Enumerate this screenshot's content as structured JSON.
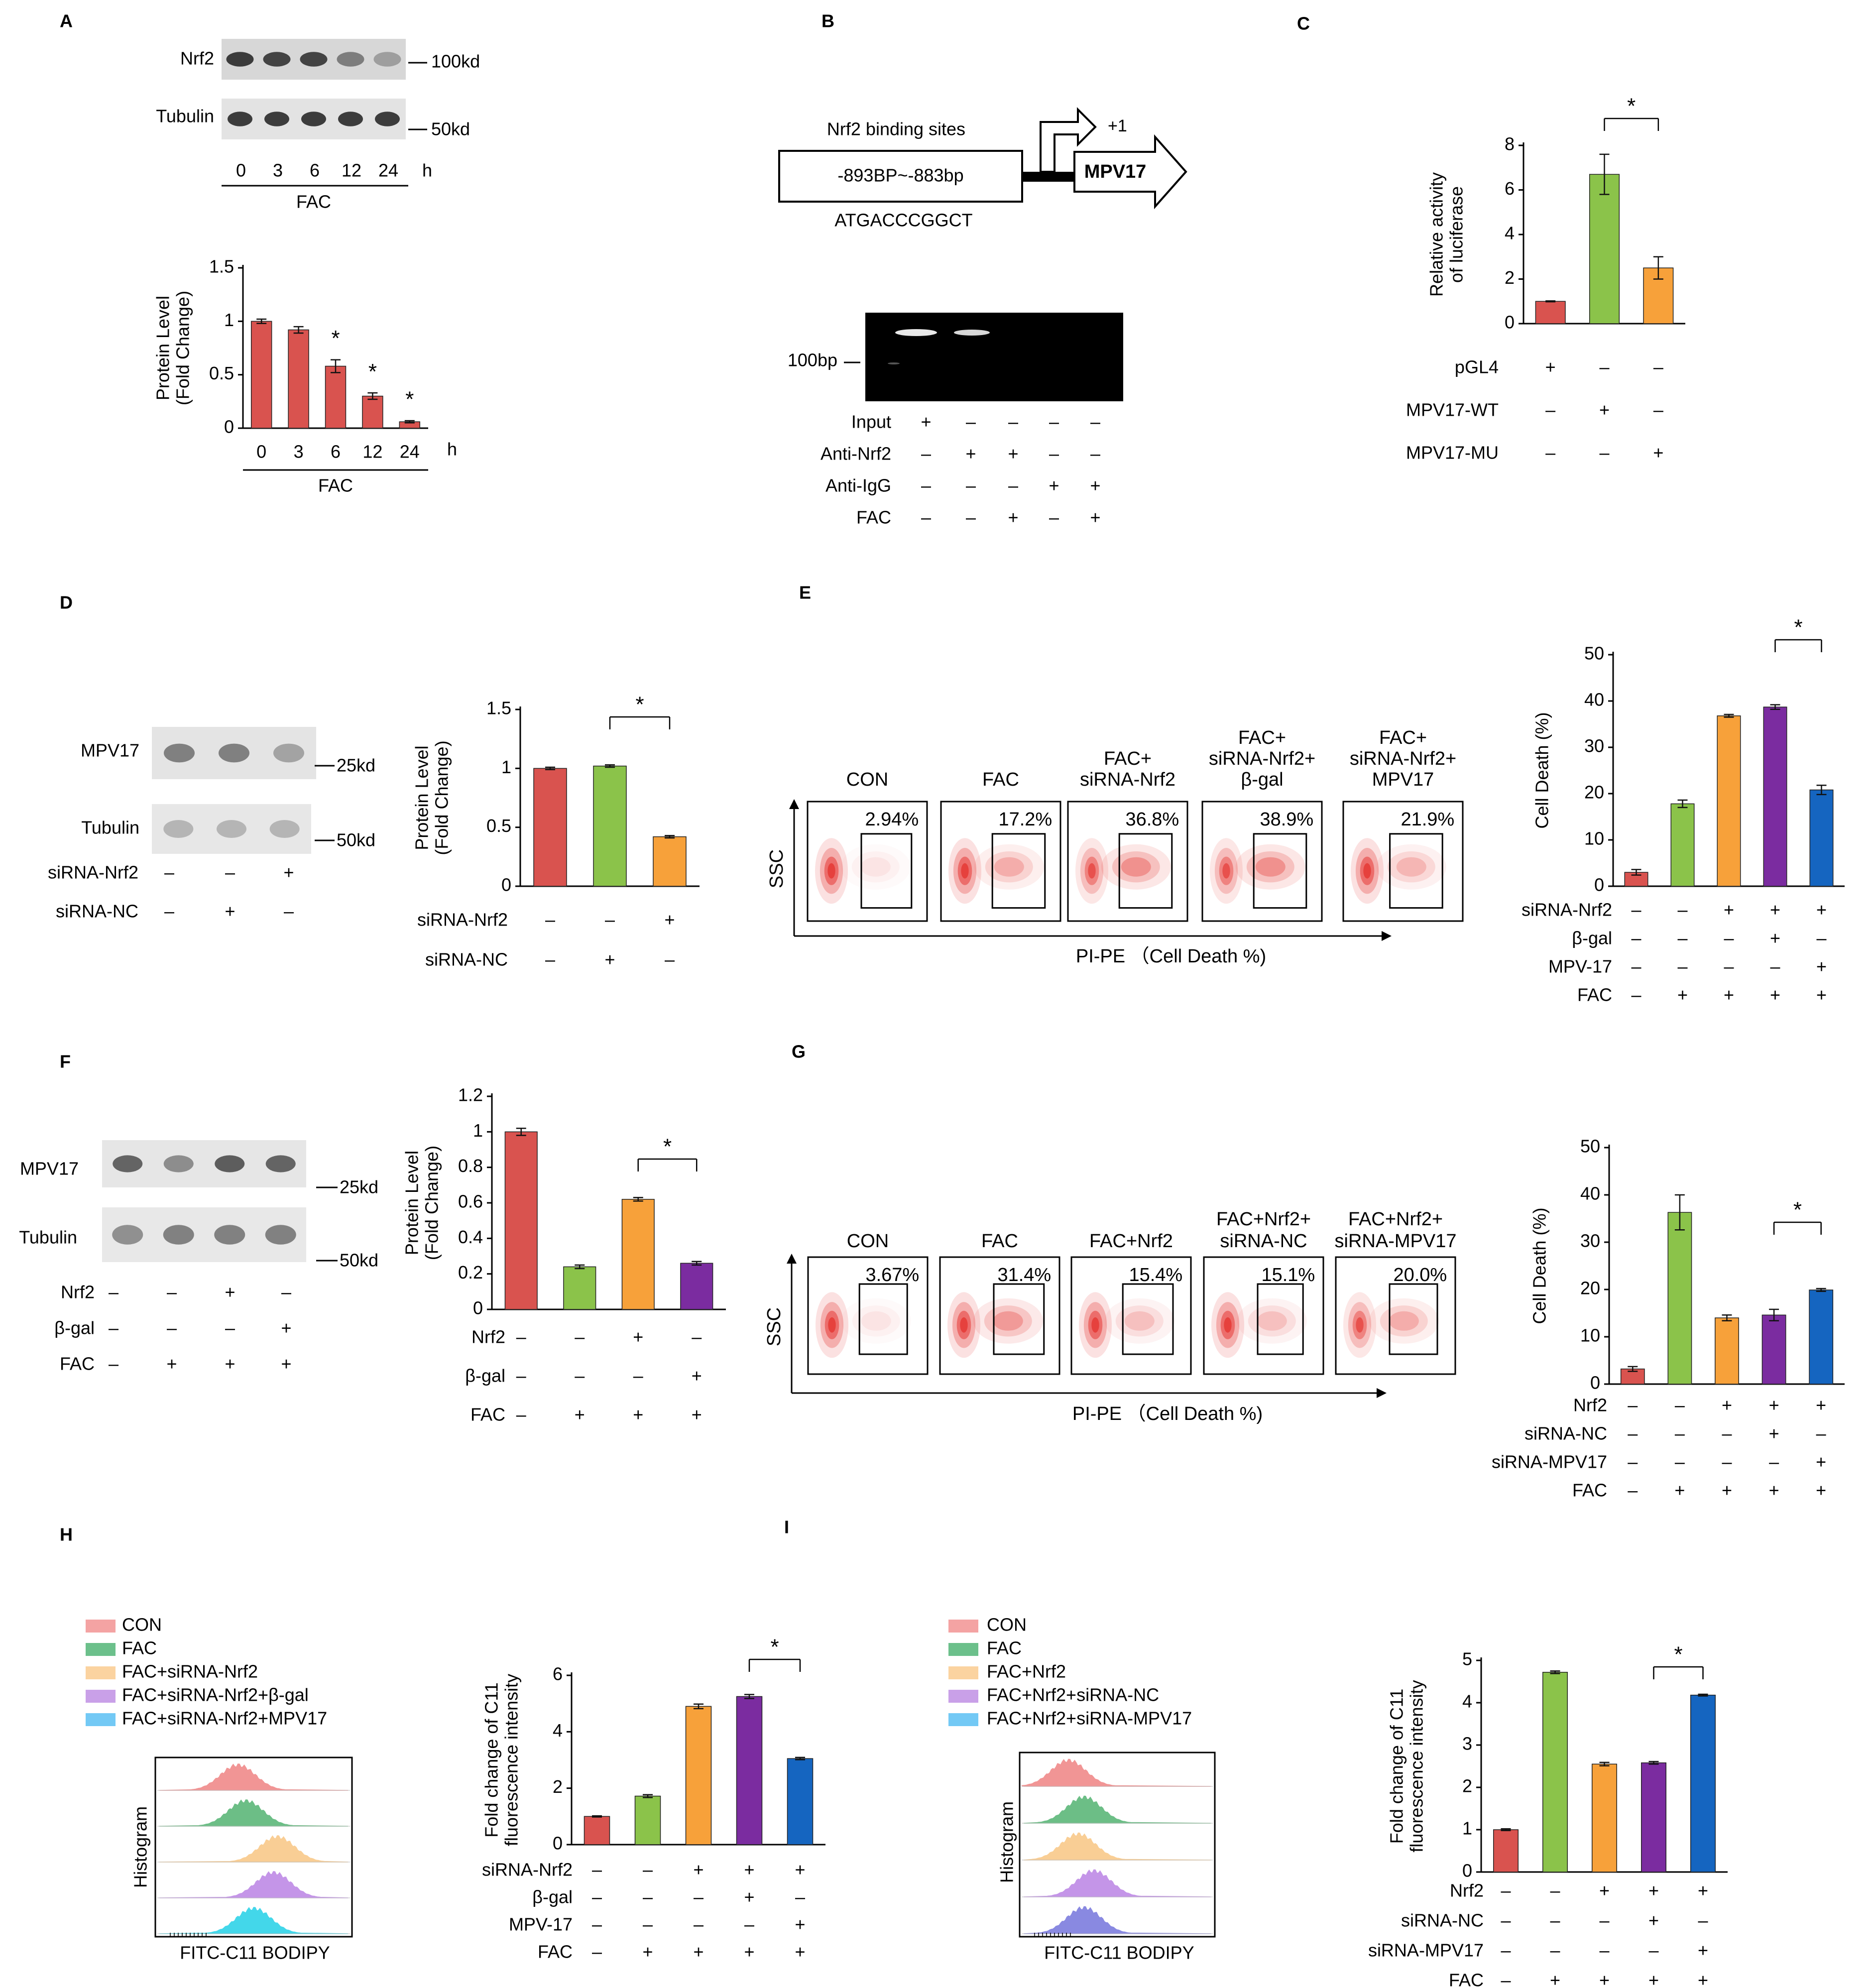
{
  "colors": {
    "red": "#D9534F",
    "green": "#8BC34A",
    "orange": "#F7A13A",
    "purple": "#7B2CA0",
    "blue": "#1565C0",
    "gel": "#e6e6e6",
    "band": "#333333"
  },
  "panels": {
    "A": {
      "label": "A",
      "blot": {
        "rows": [
          "Nrf2",
          "Tubulin"
        ],
        "sizes": [
          "100kd",
          "50kd"
        ],
        "lanes": [
          "0",
          "3",
          "6",
          "12",
          "24"
        ],
        "unit": "h",
        "treatment": "FAC"
      },
      "x_unit": "h",
      "x_group": "FAC"
    },
    "B": {
      "label": "B",
      "binding_title": "Nrf2 binding sites",
      "site_range": "-893BP~-883bp",
      "site_seq": "ATGACCCGGCT",
      "gene": "MPV17",
      "tss": "+1",
      "marker": "100bp",
      "rows": [
        {
          "name": "Input",
          "signs": [
            "+",
            "–",
            "–",
            "–",
            "–"
          ]
        },
        {
          "name": "Anti-Nrf2",
          "signs": [
            "–",
            "+",
            "+",
            "–",
            "–"
          ]
        },
        {
          "name": "Anti-IgG",
          "signs": [
            "–",
            "–",
            "–",
            "+",
            "+"
          ]
        },
        {
          "name": "FAC",
          "signs": [
            "–",
            "–",
            "+",
            "–",
            "+"
          ]
        }
      ]
    },
    "C": {
      "label": "C",
      "rows": [
        {
          "name": "pGL4",
          "signs": [
            "+",
            "–",
            "–"
          ]
        },
        {
          "name": "MPV17-WT",
          "signs": [
            "–",
            "+",
            "–"
          ]
        },
        {
          "name": "MPV17-MU",
          "signs": [
            "–",
            "–",
            "+"
          ]
        }
      ]
    },
    "D": {
      "label": "D",
      "blot": {
        "rows": [
          "MPV17",
          "Tubulin"
        ],
        "sizes": [
          "25kd",
          "50kd"
        ]
      },
      "rows": [
        {
          "name": "siRNA-Nrf2",
          "signs": [
            "–",
            "–",
            "+"
          ]
        },
        {
          "name": "siRNA-NC",
          "signs": [
            "–",
            "+",
            "–"
          ]
        }
      ]
    },
    "E": {
      "label": "E",
      "facs": [
        {
          "title": "CON",
          "pct": "2.94%"
        },
        {
          "title": "FAC",
          "pct": "17.2%"
        },
        {
          "title": "FAC+\nsiRNA-Nrf2",
          "pct": "36.8%"
        },
        {
          "title": "FAC+\nsiRNA-Nrf2+\nβ-gal",
          "pct": "38.9%"
        },
        {
          "title": "FAC+\nsiRNA-Nrf2+\nMPV17",
          "pct": "21.9%"
        }
      ],
      "yaxis": "SSC",
      "xaxis": "PI-PE （Cell Death %)",
      "rows": [
        {
          "name": "siRNA-Nrf2",
          "signs": [
            "–",
            "–",
            "+",
            "+",
            "+"
          ]
        },
        {
          "name": "β-gal",
          "signs": [
            "–",
            "–",
            "–",
            "+",
            "–"
          ]
        },
        {
          "name": "MPV-17",
          "signs": [
            "–",
            "–",
            "–",
            "–",
            "+"
          ]
        },
        {
          "name": "FAC",
          "signs": [
            "–",
            "+",
            "+",
            "+",
            "+"
          ]
        }
      ]
    },
    "F": {
      "label": "F",
      "blot": {
        "rows": [
          "MPV17",
          "Tubulin"
        ],
        "sizes": [
          "25kd",
          "50kd"
        ]
      },
      "rows": [
        {
          "name": "Nrf2",
          "signs": [
            "–",
            "–",
            "+",
            "–"
          ]
        },
        {
          "name": "β-gal",
          "signs": [
            "–",
            "–",
            "–",
            "+"
          ]
        },
        {
          "name": "FAC",
          "signs": [
            "–",
            "+",
            "+",
            "+"
          ]
        }
      ]
    },
    "G": {
      "label": "G",
      "facs": [
        {
          "title": "CON",
          "pct": "3.67%"
        },
        {
          "title": "FAC",
          "pct": "31.4%"
        },
        {
          "title": "FAC+Nrf2",
          "pct": "15.4%"
        },
        {
          "title": "FAC+Nrf2+\nsiRNA-NC",
          "pct": "15.1%"
        },
        {
          "title": "FAC+Nrf2+\nsiRNA-MPV17",
          "pct": "20.0%"
        }
      ],
      "yaxis": "SSC",
      "xaxis": "PI-PE （Cell Death %)",
      "rows": [
        {
          "name": "Nrf2",
          "signs": [
            "–",
            "–",
            "+",
            "+",
            "+"
          ]
        },
        {
          "name": "siRNA-NC",
          "signs": [
            "–",
            "–",
            "–",
            "+",
            "–"
          ]
        },
        {
          "name": "siRNA-MPV17",
          "signs": [
            "–",
            "–",
            "–",
            "–",
            "+"
          ]
        },
        {
          "name": "FAC",
          "signs": [
            "–",
            "+",
            "+",
            "+",
            "+"
          ]
        }
      ]
    },
    "H": {
      "label": "H",
      "legend": [
        "CON",
        "FAC",
        "FAC+siRNA-Nrf2",
        "FAC+siRNA-Nrf2+β-gal",
        "FAC+siRNA-Nrf2+MPV17"
      ],
      "legend_colors": [
        "#F4A3A3",
        "#6CC08B",
        "#FBD3A0",
        "#C9A0E8",
        "#73C9F5"
      ],
      "hist_colors": [
        "#F08A8A",
        "#5DB879",
        "#F9C98A",
        "#BE8AE6",
        "#2FD3E8"
      ],
      "hist_ylabel": "Histogram",
      "hist_xlabel": "FITC-C11 BODIPY",
      "rows": [
        {
          "name": "siRNA-Nrf2",
          "signs": [
            "–",
            "–",
            "+",
            "+",
            "+"
          ]
        },
        {
          "name": "β-gal",
          "signs": [
            "–",
            "–",
            "–",
            "+",
            "–"
          ]
        },
        {
          "name": "MPV-17",
          "signs": [
            "–",
            "–",
            "–",
            "–",
            "+"
          ]
        },
        {
          "name": "FAC",
          "signs": [
            "–",
            "+",
            "+",
            "+",
            "+"
          ]
        }
      ]
    },
    "I": {
      "label": "I",
      "legend": [
        "CON",
        "FAC",
        "FAC+Nrf2",
        "FAC+Nrf2+siRNA-NC",
        "FAC+Nrf2+siRNA-MPV17"
      ],
      "legend_colors": [
        "#F4A3A3",
        "#6CC08B",
        "#FBD3A0",
        "#C9A0E8",
        "#73C9F5"
      ],
      "hist_colors": [
        "#F08A8A",
        "#5DB879",
        "#F9C98A",
        "#BE8AE6",
        "#7D7DDE"
      ],
      "hist_ylabel": "Histogram",
      "hist_xlabel": "FITC-C11 BODIPY",
      "rows": [
        {
          "name": "Nrf2",
          "signs": [
            "–",
            "–",
            "+",
            "+",
            "+"
          ]
        },
        {
          "name": "siRNA-NC",
          "signs": [
            "–",
            "–",
            "–",
            "+",
            "–"
          ]
        },
        {
          "name": "siRNA-MPV17",
          "signs": [
            "–",
            "–",
            "–",
            "–",
            "+"
          ]
        },
        {
          "name": "FAC",
          "signs": [
            "–",
            "+",
            "+",
            "+",
            "+"
          ]
        }
      ]
    }
  },
  "chart_data": [
    {
      "id": "A",
      "type": "bar",
      "categories": [
        "0",
        "3",
        "6",
        "12",
        "24"
      ],
      "values": [
        1.0,
        0.92,
        0.58,
        0.3,
        0.06
      ],
      "errors": [
        0.02,
        0.03,
        0.06,
        0.03,
        0.01
      ],
      "colors": [
        "#D9534F",
        "#D9534F",
        "#D9534F",
        "#D9534F",
        "#D9534F"
      ],
      "ylabel": "Protein Level\n(Fold Change)",
      "ylim": [
        0,
        1.5
      ],
      "yticks": [
        0,
        0.5,
        1,
        1.5
      ],
      "ytick_labels": [
        "0",
        "0.5",
        "1",
        "1.5"
      ],
      "stars": [
        {
          "type": "bar",
          "i": 2
        },
        {
          "type": "bar",
          "i": 3
        },
        {
          "type": "bar",
          "i": 4
        }
      ]
    },
    {
      "id": "C",
      "type": "bar",
      "categories": [
        "pGL4",
        "MPV17-WT",
        "MPV17-MU"
      ],
      "values": [
        1.0,
        6.7,
        2.5
      ],
      "errors": [
        0.02,
        0.9,
        0.5
      ],
      "colors": [
        "#D9534F",
        "#8BC34A",
        "#F7A13A"
      ],
      "ylabel": "Relative activity\nof luciferase",
      "ylim": [
        0,
        8
      ],
      "yticks": [
        0,
        2,
        4,
        6,
        8
      ],
      "ytick_labels": [
        "0",
        "2",
        "4",
        "6",
        "8"
      ],
      "stars": [
        {
          "type": "bracket",
          "a": 1,
          "b": 2
        }
      ]
    },
    {
      "id": "D",
      "type": "bar",
      "categories": [
        "1",
        "2",
        "3"
      ],
      "values": [
        1.0,
        1.02,
        0.42
      ],
      "errors": [
        0.01,
        0.01,
        0.01
      ],
      "colors": [
        "#D9534F",
        "#8BC34A",
        "#F7A13A"
      ],
      "ylabel": "Protein Level\n(Fold Change)",
      "ylim": [
        0,
        1.5
      ],
      "yticks": [
        0,
        0.5,
        1,
        1.5
      ],
      "ytick_labels": [
        "0",
        "0.5",
        "1",
        "1.5"
      ],
      "stars": [
        {
          "type": "bracket",
          "a": 1,
          "b": 2
        }
      ]
    },
    {
      "id": "E",
      "type": "bar",
      "categories": [
        "1",
        "2",
        "3",
        "4",
        "5"
      ],
      "values": [
        3.0,
        17.8,
        36.8,
        38.7,
        20.8
      ],
      "errors": [
        0.6,
        0.8,
        0.3,
        0.5,
        1.0
      ],
      "colors": [
        "#D9534F",
        "#8BC34A",
        "#F7A13A",
        "#7B2CA0",
        "#1565C0"
      ],
      "ylabel": "Cell Death (%)",
      "ylim": [
        0,
        50
      ],
      "yticks": [
        0,
        10,
        20,
        30,
        40,
        50
      ],
      "ytick_labels": [
        "0",
        "10",
        "20",
        "30",
        "40",
        "50"
      ],
      "stars": [
        {
          "type": "bracket",
          "a": 3,
          "b": 4
        }
      ]
    },
    {
      "id": "F",
      "type": "bar",
      "categories": [
        "1",
        "2",
        "3",
        "4"
      ],
      "values": [
        1.0,
        0.24,
        0.62,
        0.26
      ],
      "errors": [
        0.02,
        0.01,
        0.01,
        0.01
      ],
      "colors": [
        "#D9534F",
        "#8BC34A",
        "#F7A13A",
        "#7B2CA0"
      ],
      "ylabel": "Protein Level\n(Fold Change)",
      "ylim": [
        0,
        1.2
      ],
      "yticks": [
        0,
        0.2,
        0.4,
        0.6,
        0.8,
        1,
        1.2
      ],
      "ytick_labels": [
        "0",
        "0.2",
        "0.4",
        "0.6",
        "0.8",
        "1",
        "1.2"
      ],
      "stars": [
        {
          "type": "bracket",
          "a": 2,
          "b": 3
        }
      ]
    },
    {
      "id": "G",
      "type": "bar",
      "categories": [
        "1",
        "2",
        "3",
        "4",
        "5"
      ],
      "values": [
        3.2,
        36.3,
        14.0,
        14.6,
        19.9
      ],
      "errors": [
        0.5,
        3.7,
        0.6,
        1.2,
        0.3
      ],
      "colors": [
        "#D9534F",
        "#8BC34A",
        "#F7A13A",
        "#7B2CA0",
        "#1565C0"
      ],
      "ylabel": "Cell Death (%)",
      "ylim": [
        0,
        50
      ],
      "yticks": [
        0,
        10,
        20,
        30,
        40,
        50
      ],
      "ytick_labels": [
        "0",
        "10",
        "20",
        "30",
        "40",
        "50"
      ],
      "stars": [
        {
          "type": "bracket",
          "a": 3,
          "b": 4
        }
      ]
    },
    {
      "id": "H",
      "type": "bar",
      "categories": [
        "1",
        "2",
        "3",
        "4",
        "5"
      ],
      "values": [
        1.0,
        1.72,
        4.9,
        5.25,
        3.05
      ],
      "errors": [
        0.02,
        0.05,
        0.08,
        0.07,
        0.04
      ],
      "colors": [
        "#D9534F",
        "#8BC34A",
        "#F7A13A",
        "#7B2CA0",
        "#1565C0"
      ],
      "ylabel": "Fold change of C11\nfluorescence intensity",
      "ylim": [
        0,
        6
      ],
      "yticks": [
        0,
        2,
        4,
        6
      ],
      "ytick_labels": [
        "0",
        "2",
        "4",
        "6"
      ],
      "stars": [
        {
          "type": "bracket",
          "a": 3,
          "b": 4
        }
      ]
    },
    {
      "id": "I",
      "type": "bar",
      "categories": [
        "1",
        "2",
        "3",
        "4",
        "5"
      ],
      "values": [
        1.0,
        4.72,
        2.55,
        2.58,
        4.18
      ],
      "errors": [
        0.02,
        0.03,
        0.04,
        0.03,
        0.02
      ],
      "colors": [
        "#D9534F",
        "#8BC34A",
        "#F7A13A",
        "#7B2CA0",
        "#1565C0"
      ],
      "ylabel": "Fold change of C11\nfluorescence intensity",
      "ylim": [
        0,
        5
      ],
      "yticks": [
        0,
        1,
        2,
        3,
        4,
        5
      ],
      "ytick_labels": [
        "0",
        "1",
        "2",
        "3",
        "4",
        "5"
      ],
      "stars": [
        {
          "type": "bracket",
          "a": 3,
          "b": 4
        }
      ]
    }
  ]
}
